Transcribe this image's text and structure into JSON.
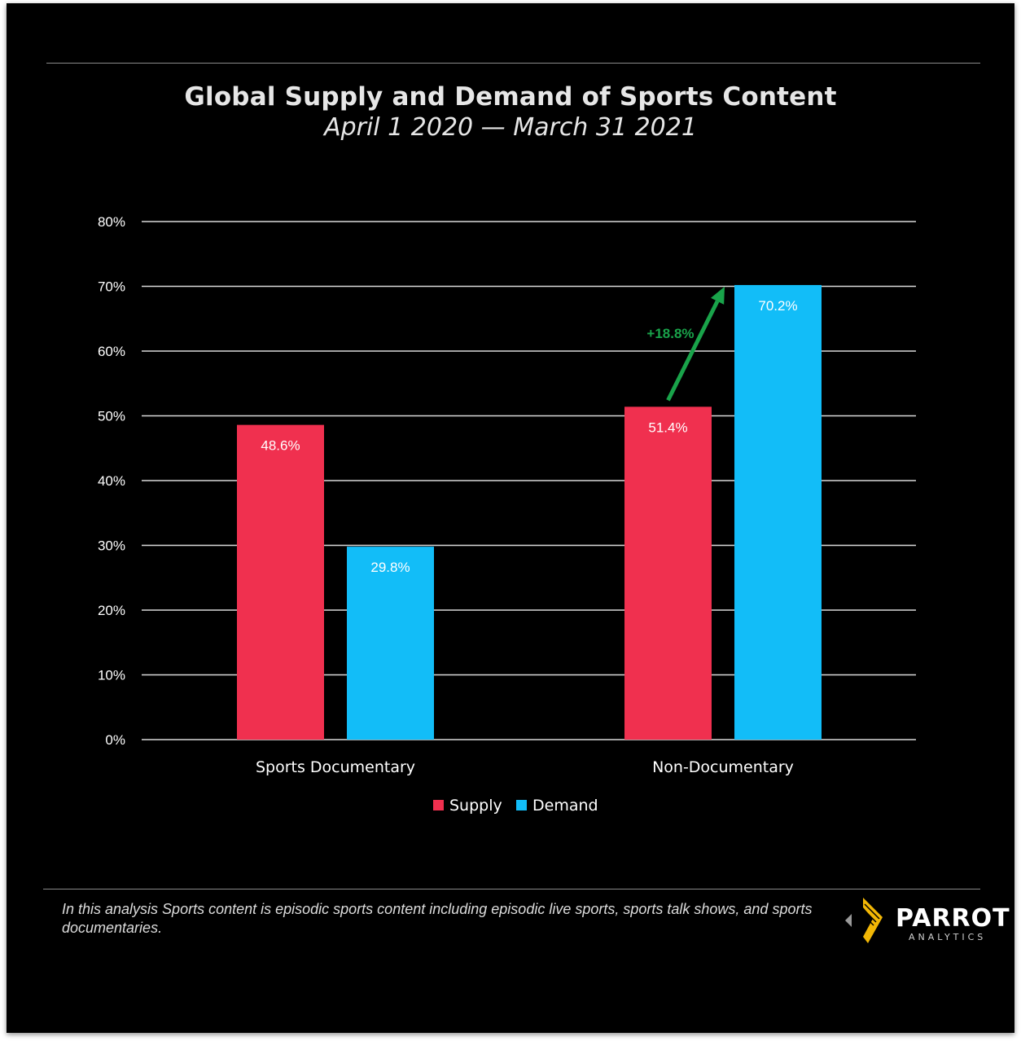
{
  "header": {
    "title": "Global Supply and Demand of Sports Content",
    "subtitle": "April 1 2020 — March 31 2021"
  },
  "chart_data": {
    "type": "bar",
    "categories": [
      "Sports Documentary",
      "Non-Documentary"
    ],
    "series": [
      {
        "name": "Supply",
        "values": [
          48.6,
          51.4
        ],
        "labels": [
          "48.6%",
          "51.4%"
        ],
        "color": "#f0304f"
      },
      {
        "name": "Demand",
        "values": [
          29.8,
          70.2
        ],
        "labels": [
          "29.8%",
          "70.2%"
        ],
        "color": "#12bdf8"
      }
    ],
    "ylim": [
      0,
      80
    ],
    "yticks": [
      0,
      10,
      20,
      30,
      40,
      50,
      60,
      70,
      80
    ],
    "ytick_labels": [
      "0%",
      "10%",
      "20%",
      "30%",
      "40%",
      "50%",
      "60%",
      "70%",
      "80%"
    ],
    "grid": true,
    "legend_position": "bottom",
    "annotation": {
      "text": "+18.8%",
      "color": "#19a34a",
      "category": "Non-Documentary",
      "from_series": "Supply",
      "to_series": "Demand"
    }
  },
  "footer": {
    "note": "In this analysis Sports content is episodic sports content including episodic live sports, sports talk shows, and sports documentaries.",
    "logo_name": "PARROT",
    "logo_sub": "ANALYTICS"
  },
  "colors": {
    "background": "#000000",
    "grid": "#d9d9d9",
    "text": "#ffffff"
  }
}
